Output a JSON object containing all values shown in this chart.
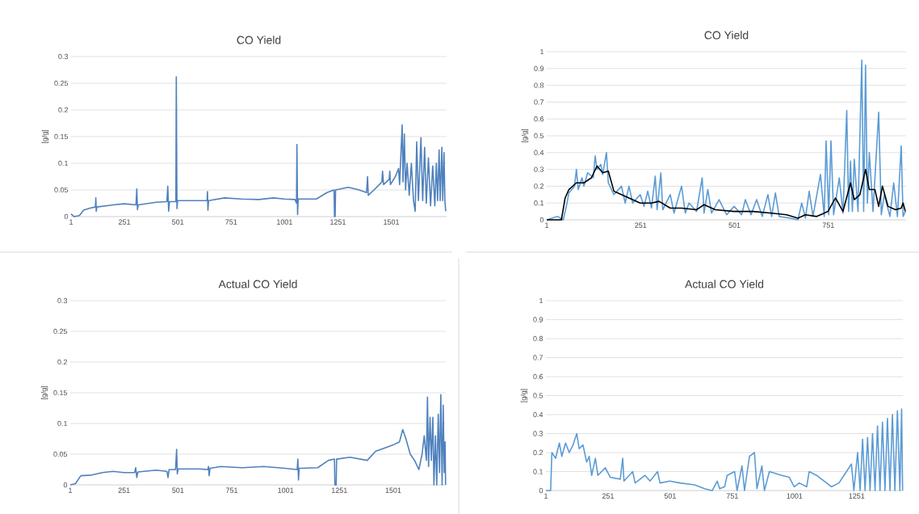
{
  "chart_data": [
    {
      "type": "line",
      "title": "CO Yield",
      "ylabel": "[g/g]",
      "xlim": [
        1,
        1760
      ],
      "ylim": [
        0,
        0.3
      ],
      "xticks": [
        1,
        251,
        501,
        751,
        1001,
        1251,
        1501
      ],
      "yticks": [
        0,
        0.05,
        0.1,
        0.15,
        0.2,
        0.25,
        0.3
      ],
      "grid": "y",
      "series": [
        {
          "color": "#4f81bd",
          "x": [
            1,
            15,
            40,
            60,
            90,
            115,
            117,
            119,
            122,
            200,
            250,
            305,
            309,
            312,
            316,
            400,
            450,
            454,
            458,
            462,
            492,
            494,
            497,
            500,
            560,
            638,
            640,
            642,
            645,
            720,
            800,
            880,
            950,
            1000,
            1050,
            1057,
            1059,
            1062,
            1065,
            1150,
            1200,
            1233,
            1235,
            1238,
            1240,
            1300,
            1350,
            1385,
            1390,
            1393,
            1420,
            1457,
            1460,
            1465,
            1491,
            1494,
            1497,
            1520,
            1535,
            1540,
            1552,
            1556,
            1562,
            1568,
            1575,
            1585,
            1595,
            1605,
            1613,
            1620,
            1628,
            1640,
            1648,
            1657,
            1665,
            1675,
            1685,
            1695,
            1705,
            1712,
            1718,
            1725,
            1730,
            1738,
            1742,
            1748,
            1752,
            1756
          ],
          "values": [
            0.005,
            0,
            0.002,
            0.012,
            0.016,
            0.018,
            0.035,
            0.01,
            0.018,
            0.022,
            0.024,
            0.022,
            0.052,
            0.013,
            0.022,
            0.027,
            0.028,
            0.057,
            0.01,
            0.028,
            0.028,
            0.262,
            0.015,
            0.03,
            0.03,
            0.03,
            0.047,
            0.012,
            0.03,
            0.035,
            0.033,
            0.032,
            0.035,
            0.033,
            0.032,
            0.025,
            0.135,
            0.004,
            0.033,
            0.033,
            0.045,
            0.05,
            0,
            0,
            0.05,
            0.055,
            0.05,
            0.045,
            0.075,
            0.04,
            0.05,
            0.065,
            0.085,
            0.06,
            0.07,
            0.085,
            0.06,
            0.075,
            0.09,
            0.06,
            0.172,
            0.065,
            0.155,
            0.05,
            0.1,
            0.04,
            0.1,
            0.03,
            0.01,
            0.14,
            0.03,
            0.148,
            0.03,
            0.13,
            0.025,
            0.11,
            0.02,
            0.095,
            0.02,
            0.1,
            0.03,
            0.125,
            0.03,
            0.13,
            0.03,
            0.12,
            0.03,
            0.01
          ]
        }
      ]
    },
    {
      "type": "line",
      "title": "CO Yield",
      "ylabel": "[g/g]",
      "xlim": [
        1,
        958
      ],
      "ylim": [
        0,
        1
      ],
      "xticks": [
        1,
        251,
        501,
        751
      ],
      "yticks": [
        0,
        0.1,
        0.2,
        0.3,
        0.4,
        0.5,
        0.6,
        0.7,
        0.8,
        0.9,
        1
      ],
      "grid": "y",
      "series": [
        {
          "color": "#5b9bd5",
          "x": [
            1,
            30,
            45,
            55,
            60,
            75,
            80,
            85,
            95,
            100,
            110,
            125,
            130,
            135,
            145,
            150,
            160,
            165,
            180,
            200,
            210,
            220,
            230,
            250,
            260,
            270,
            280,
            290,
            295,
            305,
            310,
            330,
            340,
            360,
            370,
            380,
            400,
            415,
            420,
            430,
            440,
            460,
            480,
            500,
            520,
            530,
            545,
            560,
            575,
            590,
            600,
            610,
            620,
            650,
            670,
            680,
            690,
            700,
            710,
            730,
            740,
            745,
            752,
            758,
            765,
            780,
            790,
            800,
            805,
            810,
            815,
            820,
            830,
            840,
            845,
            850,
            855,
            860,
            870,
            885,
            892,
            900,
            915,
            925,
            935,
            945,
            950,
            956
          ],
          "values": [
            0,
            0.02,
            0,
            0.1,
            0.16,
            0.2,
            0.3,
            0.18,
            0.25,
            0.2,
            0.28,
            0.25,
            0.38,
            0.3,
            0.33,
            0.27,
            0.4,
            0.22,
            0.15,
            0.2,
            0.1,
            0.2,
            0.1,
            0.15,
            0.08,
            0.17,
            0.07,
            0.26,
            0.06,
            0.28,
            0.06,
            0.15,
            0.04,
            0.2,
            0.04,
            0.1,
            0.05,
            0.25,
            0.04,
            0.18,
            0.04,
            0.12,
            0.03,
            0.08,
            0.03,
            0.12,
            0.03,
            0.12,
            0.02,
            0.15,
            0.02,
            0.16,
            0.02,
            0.01,
            0,
            0.1,
            0.01,
            0.17,
            0.02,
            0.27,
            0.02,
            0.47,
            0.03,
            0.47,
            0.03,
            0.25,
            0.04,
            0.65,
            0.05,
            0.35,
            0.05,
            0.36,
            0.05,
            0.95,
            0.05,
            0.92,
            0.1,
            0.4,
            0.05,
            0.64,
            0.03,
            0.15,
            0.02,
            0.22,
            0.02,
            0.44,
            0.02,
            0.05
          ]
        },
        {
          "color": "#000000",
          "x": [
            1,
            40,
            50,
            60,
            80,
            100,
            120,
            135,
            150,
            165,
            180,
            200,
            220,
            250,
            280,
            300,
            330,
            360,
            400,
            420,
            450,
            500,
            550,
            600,
            640,
            670,
            690,
            720,
            750,
            770,
            790,
            810,
            820,
            835,
            850,
            860,
            875,
            885,
            895,
            910,
            930,
            945,
            950,
            956
          ],
          "values": [
            0,
            0,
            0.13,
            0.18,
            0.22,
            0.22,
            0.25,
            0.32,
            0.28,
            0.29,
            0.17,
            0.15,
            0.13,
            0.1,
            0.1,
            0.11,
            0.07,
            0.07,
            0.06,
            0.09,
            0.06,
            0.05,
            0.05,
            0.04,
            0.03,
            0.01,
            0.03,
            0.02,
            0.05,
            0.13,
            0.05,
            0.22,
            0.12,
            0.15,
            0.3,
            0.18,
            0.18,
            0.08,
            0.2,
            0.08,
            0.06,
            0.07,
            0.1,
            0.05
          ]
        }
      ]
    },
    {
      "type": "line",
      "title": "Actual CO Yield",
      "ylabel": "[g/g]",
      "xlim": [
        1,
        1745
      ],
      "ylim": [
        0,
        0.3
      ],
      "xticks": [
        1,
        251,
        501,
        751,
        1001,
        1251,
        1501
      ],
      "yticks": [
        0,
        0.05,
        0.1,
        0.15,
        0.2,
        0.25,
        0.3
      ],
      "grid": "y",
      "series": [
        {
          "color": "#4f81bd",
          "x": [
            1,
            25,
            50,
            100,
            150,
            200,
            250,
            300,
            305,
            310,
            315,
            400,
            450,
            455,
            460,
            490,
            495,
            498,
            502,
            600,
            640,
            643,
            646,
            650,
            700,
            800,
            900,
            1000,
            1055,
            1058,
            1061,
            1064,
            1150,
            1200,
            1228,
            1230,
            1236,
            1238,
            1300,
            1380,
            1420,
            1460,
            1500,
            1530,
            1545,
            1560,
            1580,
            1600,
            1620,
            1635,
            1645,
            1655,
            1660,
            1665,
            1672,
            1678,
            1685,
            1690,
            1697,
            1703,
            1710,
            1716,
            1722,
            1728,
            1733,
            1738,
            1742,
            1744
          ],
          "values": [
            0,
            0.002,
            0.015,
            0.016,
            0.02,
            0.022,
            0.02,
            0.02,
            0.028,
            0.012,
            0.021,
            0.024,
            0.022,
            0.012,
            0.025,
            0.025,
            0.058,
            0.018,
            0.026,
            0.026,
            0.025,
            0.03,
            0.015,
            0.027,
            0.03,
            0.028,
            0.03,
            0.027,
            0.025,
            0.042,
            0.008,
            0.027,
            0.028,
            0.04,
            0.042,
            0,
            0,
            0.042,
            0.045,
            0.04,
            0.055,
            0.06,
            0.065,
            0.07,
            0.09,
            0.075,
            0.05,
            0.04,
            0.025,
            0.05,
            0.08,
            0.04,
            0.143,
            0.03,
            0.11,
            0.04,
            0.11,
            0,
            0.08,
            0,
            0.115,
            0.02,
            0.147,
            0,
            0.13,
            0.02,
            0.07,
            0
          ]
        }
      ]
    },
    {
      "type": "line",
      "title": "Actual CO Yield",
      "ylabel": "[g/g]",
      "xlim": [
        1,
        1437
      ],
      "ylim": [
        0,
        1
      ],
      "xticks": [
        1,
        251,
        501,
        751,
        1001,
        1251
      ],
      "yticks": [
        0,
        0.1,
        0.2,
        0.3,
        0.4,
        0.5,
        0.6,
        0.7,
        0.8,
        0.9,
        1
      ],
      "grid": "y",
      "series": [
        {
          "color": "#5b9bd5",
          "x": [
            1,
            20,
            25,
            40,
            55,
            65,
            80,
            95,
            110,
            125,
            135,
            150,
            165,
            175,
            185,
            200,
            210,
            240,
            260,
            300,
            310,
            315,
            350,
            360,
            400,
            420,
            450,
            460,
            500,
            540,
            600,
            640,
            670,
            690,
            700,
            720,
            730,
            760,
            770,
            790,
            800,
            820,
            840,
            850,
            870,
            880,
            900,
            950,
            980,
            1000,
            1020,
            1050,
            1060,
            1090,
            1130,
            1150,
            1180,
            1200,
            1230,
            1240,
            1255,
            1265,
            1275,
            1285,
            1295,
            1305,
            1315,
            1325,
            1335,
            1345,
            1355,
            1365,
            1375,
            1385,
            1395,
            1405,
            1415,
            1425,
            1432,
            1436
          ],
          "values": [
            0,
            0,
            0.2,
            0.17,
            0.25,
            0.18,
            0.25,
            0.2,
            0.24,
            0.3,
            0.22,
            0.24,
            0.15,
            0.18,
            0.08,
            0.17,
            0.08,
            0.12,
            0.07,
            0.06,
            0.17,
            0.05,
            0.1,
            0.04,
            0.08,
            0.05,
            0.1,
            0.04,
            0.05,
            0.04,
            0.03,
            0.01,
            0,
            0.05,
            0.01,
            0.02,
            0.08,
            0.1,
            0,
            0.13,
            0,
            0.18,
            0.2,
            0.01,
            0.13,
            0,
            0.1,
            0.08,
            0.07,
            0.02,
            0.04,
            0.02,
            0.1,
            0.08,
            0.04,
            0.02,
            0.04,
            0.08,
            0.14,
            0,
            0.2,
            0,
            0.27,
            0,
            0.28,
            0,
            0.3,
            0,
            0.34,
            0,
            0.36,
            0,
            0.38,
            0,
            0.4,
            0,
            0.42,
            0,
            0.43,
            0
          ]
        }
      ]
    }
  ]
}
